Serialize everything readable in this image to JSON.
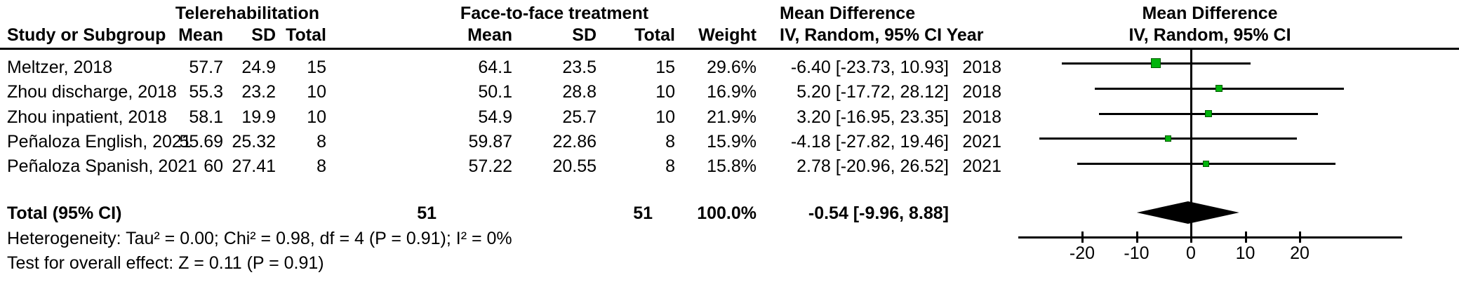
{
  "table": {
    "group1_header": "Telerehabilitation",
    "group2_header": "Face-to-face treatment",
    "md_header_line1": "Mean Difference",
    "md_header_line2": "IV, Random, 95% CI Year",
    "plot_header_line1": "Mean Difference",
    "plot_header_line2": "IV, Random, 95% CI",
    "col_study": "Study or Subgroup",
    "col_mean1": "Mean",
    "col_sd1": "SD",
    "col_total1": "Total",
    "col_mean2": "Mean",
    "col_sd2": "SD",
    "col_total2": "Total",
    "col_weight": "Weight",
    "rows": [
      {
        "study": "Meltzer, 2018",
        "t_mean": "57.7",
        "t_sd": "24.9",
        "t_total": "15",
        "f_mean": "64.1",
        "f_sd": "23.5",
        "f_total": "15",
        "weight": "29.6%",
        "md": "-6.40 [-23.73, 10.93]",
        "year": "2018"
      },
      {
        "study": "Zhou discharge, 2018",
        "t_mean": "55.3",
        "t_sd": "23.2",
        "t_total": "10",
        "f_mean": "50.1",
        "f_sd": "28.8",
        "f_total": "10",
        "weight": "16.9%",
        "md": "5.20 [-17.72, 28.12]",
        "year": "2018"
      },
      {
        "study": "Zhou inpatient, 2018",
        "t_mean": "58.1",
        "t_sd": "19.9",
        "t_total": "10",
        "f_mean": "54.9",
        "f_sd": "25.7",
        "f_total": "10",
        "weight": "21.9%",
        "md": "3.20 [-16.95, 23.35]",
        "year": "2018"
      },
      {
        "study": "Peñaloza English, 2021",
        "t_mean": "55.69",
        "t_sd": "25.32",
        "t_total": "8",
        "f_mean": "59.87",
        "f_sd": "22.86",
        "f_total": "8",
        "weight": "15.9%",
        "md": "-4.18 [-27.82, 19.46]",
        "year": "2021"
      },
      {
        "study": "Peñaloza Spanish, 2021",
        "t_mean": "60",
        "t_sd": "27.41",
        "t_total": "8",
        "f_mean": "57.22",
        "f_sd": "20.55",
        "f_total": "8",
        "weight": "15.8%",
        "md": "2.78 [-20.96, 26.52]",
        "year": "2021"
      }
    ],
    "total": {
      "label": "Total (95% CI)",
      "t_total": "51",
      "f_total": "51",
      "weight": "100.0%",
      "md": "-0.54 [-9.96, 8.88]"
    },
    "heterogeneity": "Heterogeneity: Tau² = 0.00; Chi² = 0.98, df = 4 (P = 0.91); I² = 0%",
    "overall_effect": "Test for overall effect: Z = 0.11 (P = 0.91)"
  },
  "chart_data": {
    "type": "scatter",
    "subtype": "forest-plot",
    "title": "Mean Difference",
    "subtitle": "IV, Random, 95% CI",
    "studies": [
      "Meltzer, 2018",
      "Zhou discharge, 2018",
      "Zhou inpatient, 2018",
      "Peñaloza English, 2021",
      "Peñaloza Spanish, 2021"
    ],
    "estimates": [
      -6.4,
      5.2,
      3.2,
      -4.18,
      2.78
    ],
    "ci_low": [
      -23.73,
      -17.72,
      -16.95,
      -27.82,
      -20.96
    ],
    "ci_high": [
      10.93,
      28.12,
      23.35,
      19.46,
      26.52
    ],
    "weights_pct": [
      29.6,
      16.9,
      21.9,
      15.9,
      15.8
    ],
    "years": [
      "2018",
      "2018",
      "2018",
      "2021",
      "2021"
    ],
    "total": {
      "estimate": -0.54,
      "ci_low": -9.96,
      "ci_high": 8.88
    },
    "x_ticks": [
      -20,
      -10,
      0,
      10,
      20
    ],
    "xlim": [
      -31.7,
      38.8
    ],
    "zero_line": 0,
    "grid": false,
    "marker_color": "#00B40C",
    "line_color": "#000000"
  }
}
